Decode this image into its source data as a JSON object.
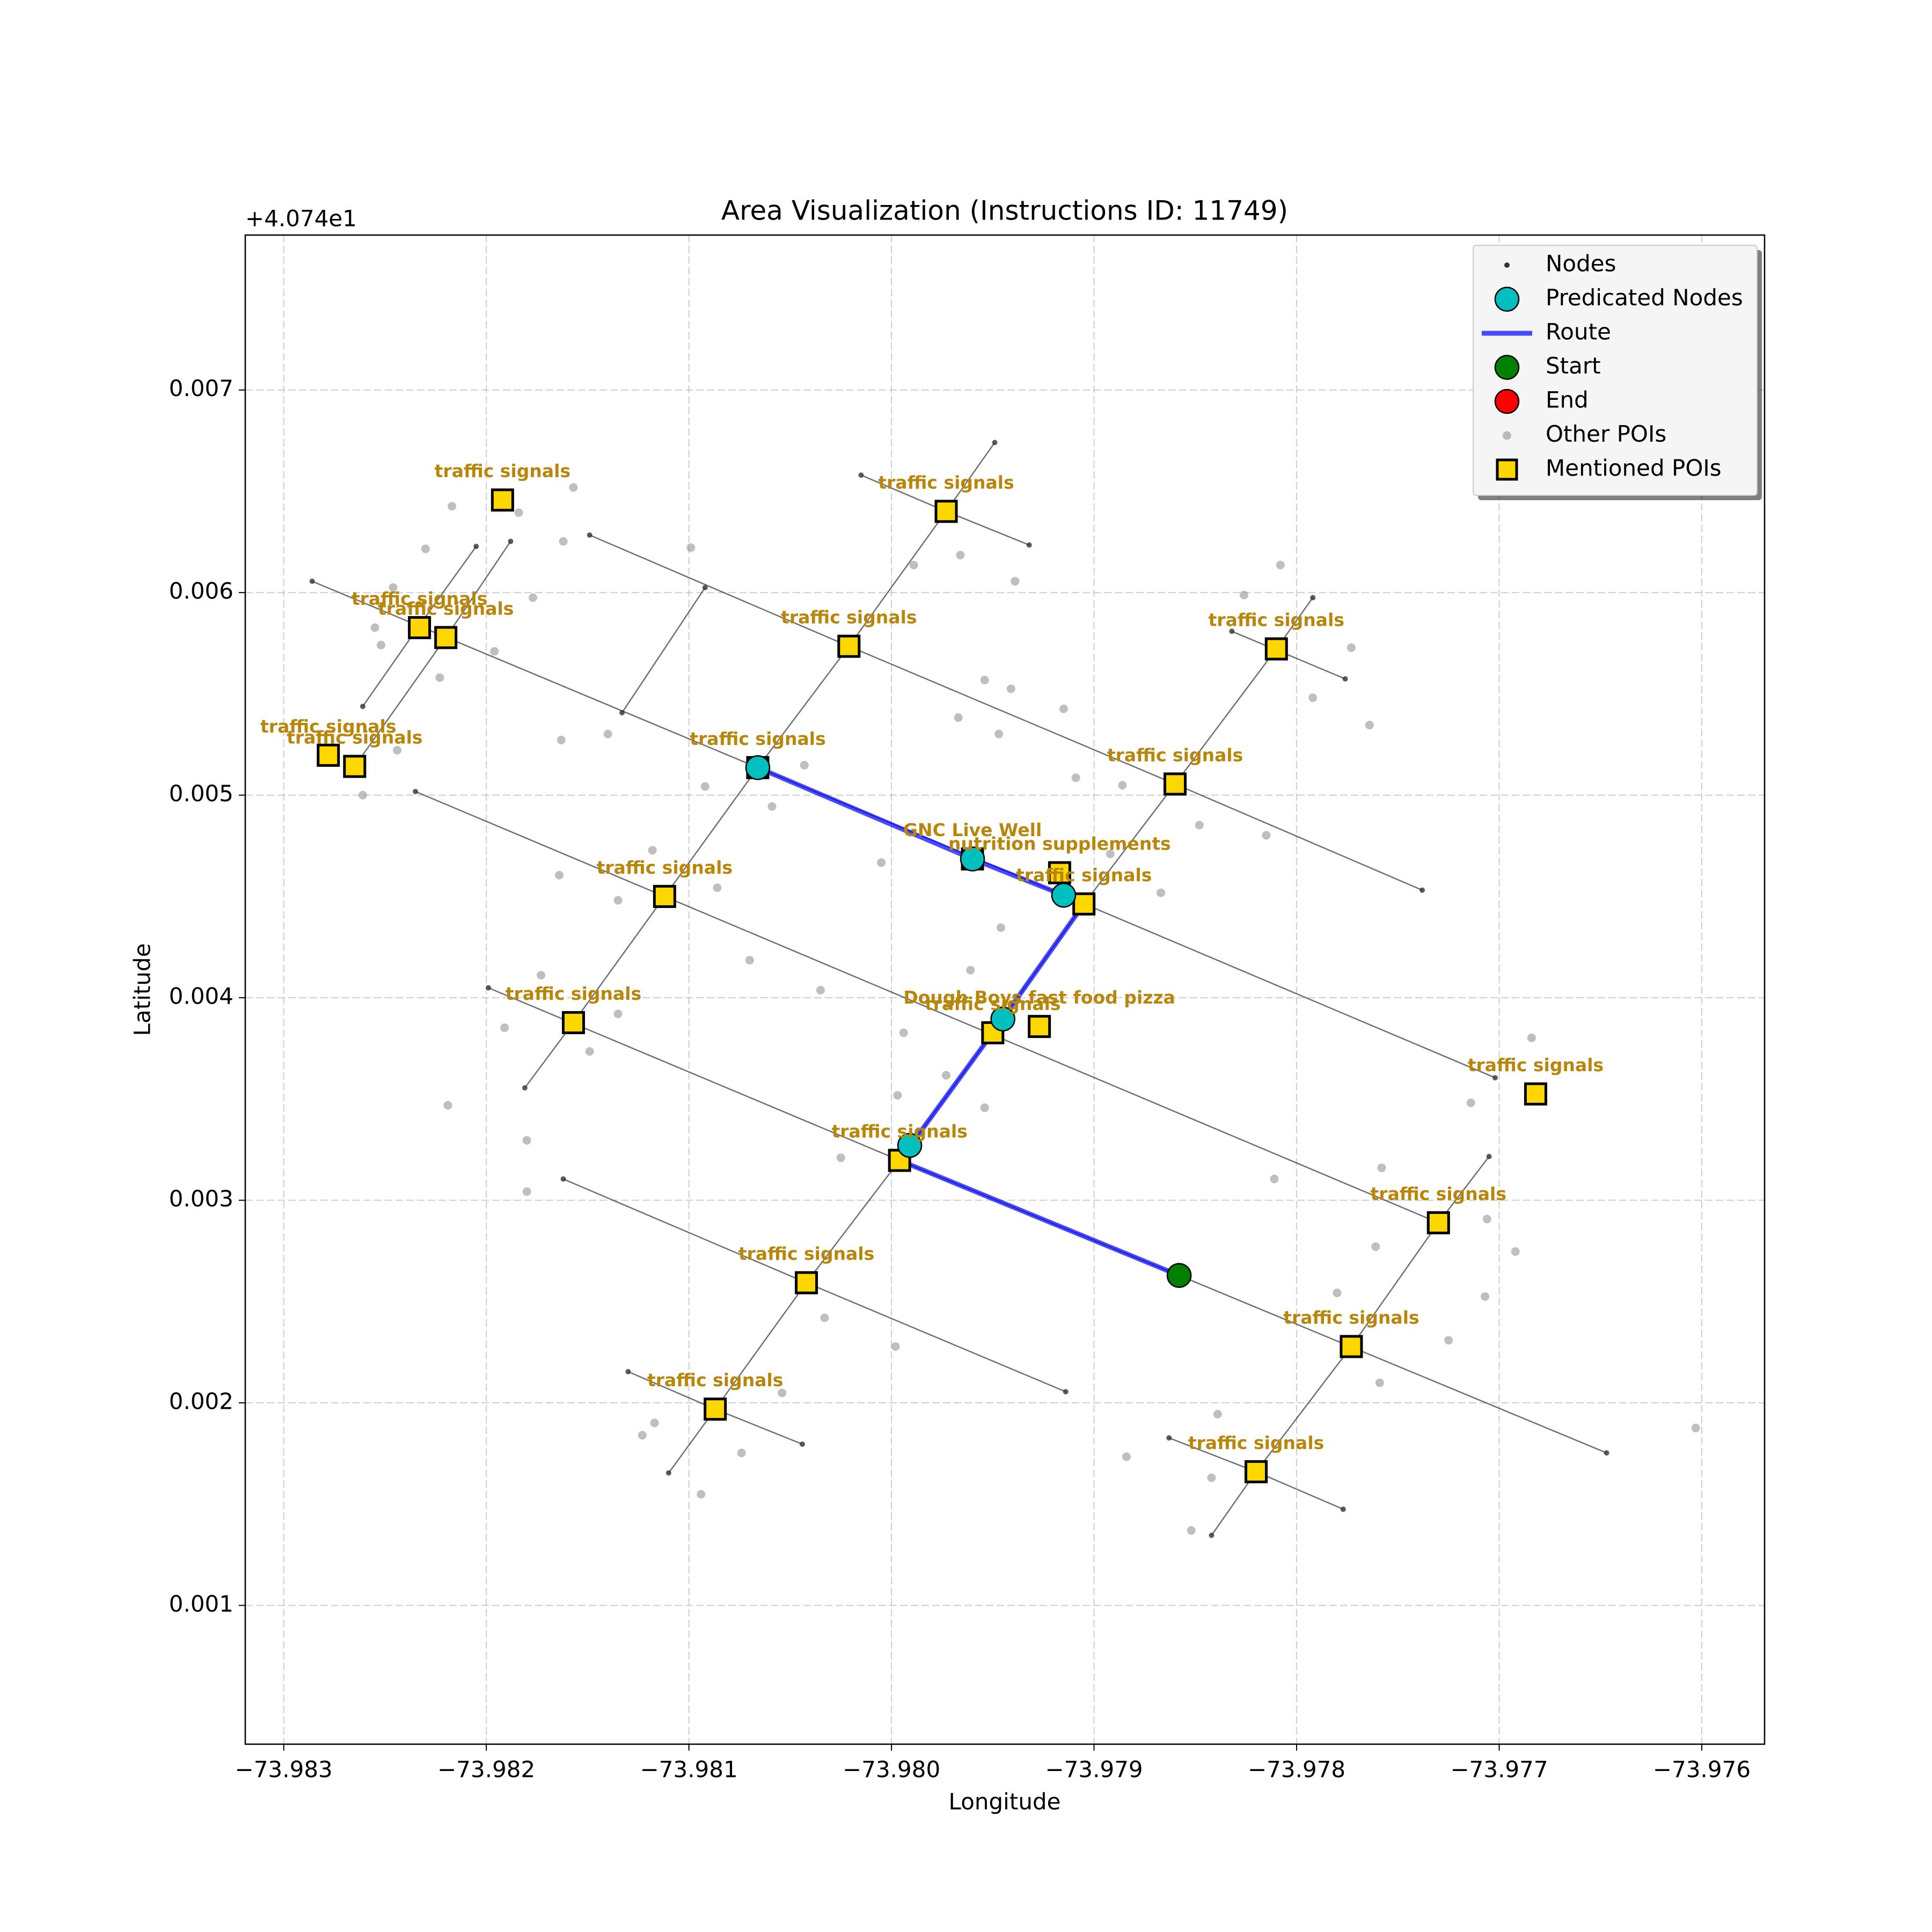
{
  "chart_data": {
    "type": "scatter",
    "title": "Area Visualization (Instructions ID: 11749)",
    "xlabel": "Longitude",
    "ylabel": "Latitude",
    "offset_text": "+4.074e1",
    "xlim": [
      -73.98319,
      -73.97569
    ],
    "ylim": [
      0.000315,
      0.007765
    ],
    "xticks": [
      {
        "value": -73.983,
        "label": "−73.983"
      },
      {
        "value": -73.982,
        "label": "−73.982"
      },
      {
        "value": -73.981,
        "label": "−73.981"
      },
      {
        "value": -73.98,
        "label": "−73.980"
      },
      {
        "value": -73.979,
        "label": "−73.979"
      },
      {
        "value": -73.978,
        "label": "−73.978"
      },
      {
        "value": -73.977,
        "label": "−73.977"
      },
      {
        "value": -73.976,
        "label": "−73.976"
      }
    ],
    "yticks": [
      0.001,
      0.002,
      0.003,
      0.004,
      0.005,
      0.006,
      0.007
    ],
    "grid": true,
    "legend": "upper right",
    "series": [
      {
        "name": "Nodes",
        "color": "#333333",
        "marker": "dot",
        "roads": [
          {
            "x": [
              -73.98286,
              -73.98066,
              -73.97915,
              -73.97702
            ],
            "y": [
              0.006056,
              0.005136,
              0.004506,
              0.003605
            ]
          },
          {
            "x": [
              -73.98149,
              -73.98021,
              -73.9786,
              -73.97738
            ],
            "y": [
              0.006284,
              0.005735,
              0.005055,
              0.004531
            ]
          },
          {
            "x": [
              -73.98235,
              -73.98112,
              -73.9773
            ],
            "y": [
              0.005018,
              0.0045,
              0.002889
            ]
          },
          {
            "x": [
              -73.98199,
              -73.97996,
              -73.97858,
              -73.97647
            ],
            "y": [
              0.004049,
              0.003197,
              0.002629,
              0.001753
            ]
          },
          {
            "x": [
              -73.98162,
              -73.98042,
              -73.97914
            ],
            "y": [
              0.003105,
              0.002593,
              0.002055
            ]
          },
          {
            "x": [
              -73.9813,
              -73.98087,
              -73.98044
            ],
            "y": [
              0.002154,
              0.001969,
              0.001796
            ]
          },
          {
            "x": [
              -73.97863,
              -73.9782,
              -73.97777
            ],
            "y": [
              0.001827,
              0.00166,
              0.001475
            ]
          },
          {
            "x": [
              -73.98015,
              -73.97973,
              -73.97932
            ],
            "y": [
              0.00658,
              0.006401,
              0.006235
            ]
          },
          {
            "x": [
              -73.97832,
              -73.97776
            ],
            "y": [
              0.005809,
              0.005574
            ]
          },
          {
            "x": [
              -73.97949,
              -73.97973,
              -73.98021,
              -73.98066,
              -73.98112,
              -73.98157,
              -73.98181
            ],
            "y": [
              0.006741,
              0.006401,
              0.005735,
              0.005136,
              0.0045,
              0.003877,
              0.003555
            ]
          },
          {
            "x": [
              -73.97792,
              -73.9781,
              -73.9786,
              -73.97905,
              -73.9795,
              -73.97996,
              -73.98042,
              -73.98087,
              -73.9811
            ],
            "y": [
              0.005975,
              0.005722,
              0.005055,
              0.004463,
              0.003827,
              0.003197,
              0.002593,
              0.001969,
              0.001654
            ]
          },
          {
            "x": [
              -73.97705,
              -73.9773,
              -73.97773,
              -73.9782,
              -73.97842
            ],
            "y": [
              0.003216,
              0.002889,
              0.002278,
              0.00166,
              0.001346
            ]
          },
          {
            "x": [
              -73.98205,
              -73.98233,
              -73.98261
            ],
            "y": [
              0.006228,
              0.005839,
              0.005438
            ]
          },
          {
            "x": [
              -73.98188,
              -73.9822,
              -73.98265
            ],
            "y": [
              0.006253,
              0.005778,
              0.005142
            ]
          },
          {
            "x": [
              -73.98092,
              -73.98133
            ],
            "y": [
              0.006025,
              0.005407
            ]
          }
        ]
      },
      {
        "name": "Predicated Nodes",
        "color": "#00bfbf",
        "marker": "circle",
        "x": [
          -73.98066,
          -73.9796,
          -73.97915,
          -73.97945,
          -73.97991
        ],
        "y": [
          0.005136,
          0.004685,
          0.004506,
          0.003895,
          0.003271
        ]
      },
      {
        "name": "Route",
        "color": "#0000ff",
        "marker": "line",
        "x": [
          -73.98066,
          -73.9796,
          -73.97915,
          -73.97905,
          -73.9795,
          -73.97996,
          -73.97858
        ],
        "y": [
          0.005136,
          0.004685,
          0.004506,
          0.004463,
          0.003827,
          0.003197,
          0.002629
        ]
      },
      {
        "name": "Start",
        "color": "#008000",
        "marker": "circle",
        "x": [
          -73.97858
        ],
        "y": [
          0.002629
        ]
      },
      {
        "name": "End",
        "color": "#ff0000",
        "marker": "circle",
        "x": [],
        "y": []
      },
      {
        "name": "Other POIs",
        "color": "#808080",
        "marker": "faint",
        "x": [
          -73.98217,
          -73.98184,
          -73.98157,
          -73.9823,
          -73.98162,
          -73.98099,
          -73.98246,
          -73.98255,
          -73.98252,
          -73.98223,
          -73.98177,
          -73.98196,
          -73.98244,
          -73.98261,
          -73.98163,
          -73.9814,
          -73.98043,
          -73.98059,
          -73.98092,
          -73.98164,
          -73.98135,
          -73.98118,
          -73.98086,
          -73.98005,
          -73.97989,
          -73.97966,
          -73.97939,
          -73.97954,
          -73.97941,
          -73.97967,
          -73.97947,
          -73.97915,
          -73.97909,
          -73.97886,
          -73.97892,
          -73.97867,
          -73.97826,
          -73.97808,
          -73.97773,
          -73.97792,
          -73.97764,
          -73.97815,
          -73.97848,
          -73.97946,
          -73.97961,
          -73.97994,
          -73.97997,
          -73.97973,
          -73.97954,
          -73.98025,
          -73.98035,
          -73.9807,
          -73.98173,
          -73.98149,
          -73.98135,
          -73.98191,
          -73.98219,
          -73.9818,
          -73.9818,
          -73.97811,
          -73.97758,
          -73.97761,
          -73.9778,
          -73.97759,
          -73.97714,
          -73.97684,
          -73.97706,
          -73.97692,
          -73.97707,
          -73.97725,
          -73.97603,
          -73.98033,
          -73.98054,
          -73.98074,
          -73.98094,
          -73.97998,
          -73.97884,
          -73.97842,
          -73.97839,
          -73.97852,
          -73.98117,
          -73.98123
        ],
        "y": [
          0.006426,
          0.006395,
          0.006519,
          0.006216,
          0.006253,
          0.006222,
          0.006025,
          0.005827,
          0.005741,
          0.00558,
          0.005975,
          0.00571,
          0.005222,
          0.005,
          0.005272,
          0.005302,
          0.005148,
          0.004944,
          0.005043,
          0.004605,
          0.004481,
          0.004728,
          0.004543,
          0.004667,
          0.006136,
          0.006185,
          0.006056,
          0.005568,
          0.005525,
          0.005383,
          0.005302,
          0.005426,
          0.005086,
          0.005049,
          0.00471,
          0.004518,
          0.005988,
          0.006136,
          0.005728,
          0.005481,
          0.005346,
          0.004802,
          0.004852,
          0.004346,
          0.004136,
          0.003827,
          0.003518,
          0.003617,
          0.003457,
          0.00321,
          0.004037,
          0.004185,
          0.004111,
          0.003735,
          0.00392,
          0.003852,
          0.003469,
          0.003296,
          0.003043,
          0.003105,
          0.00316,
          0.002771,
          0.002543,
          0.002099,
          0.003481,
          0.003802,
          0.002907,
          0.002747,
          0.002525,
          0.002309,
          0.001876,
          0.00242,
          0.002049,
          0.001753,
          0.001549,
          0.002278,
          0.001734,
          0.00163,
          0.001944,
          0.00137,
          0.001901,
          0.00184
        ]
      },
      {
        "name": "Mentioned POIs",
        "color": "#ffd700",
        "marker": "square",
        "x": [
          -73.98192,
          -73.97973,
          -73.98021,
          -73.9781,
          -73.98233,
          -73.9822,
          -73.98278,
          -73.98265,
          -73.98066,
          -73.9786,
          -73.98112,
          -73.9796,
          -73.97917,
          -73.97905,
          -73.98157,
          -73.9795,
          -73.97927,
          -73.97996,
          -73.97682,
          -73.9773,
          -73.98042,
          -73.97773,
          -73.98087,
          -73.9782
        ],
        "y": [
          0.006457,
          0.006401,
          0.005735,
          0.005722,
          0.005827,
          0.005778,
          0.005197,
          0.005142,
          0.005136,
          0.005055,
          0.0045,
          0.004685,
          0.004617,
          0.004463,
          0.003877,
          0.003827,
          0.003858,
          0.003197,
          0.003525,
          0.002889,
          0.002593,
          0.002278,
          0.001969,
          0.00166
        ],
        "labels": [
          "traffic signals",
          "traffic signals",
          "traffic signals",
          "traffic signals",
          "traffic signals",
          "traffic signals",
          "traffic signals",
          "traffic signals",
          "traffic signals",
          "traffic signals",
          "traffic signals",
          "GNC Live Well",
          "nutrition supplements",
          "traffic signals",
          "traffic signals",
          "traffic signals",
          "Dough Boys fast food pizza",
          "traffic signals",
          "traffic signals",
          "traffic signals",
          "traffic signals",
          "traffic signals",
          "traffic signals",
          "traffic signals"
        ]
      }
    ]
  }
}
